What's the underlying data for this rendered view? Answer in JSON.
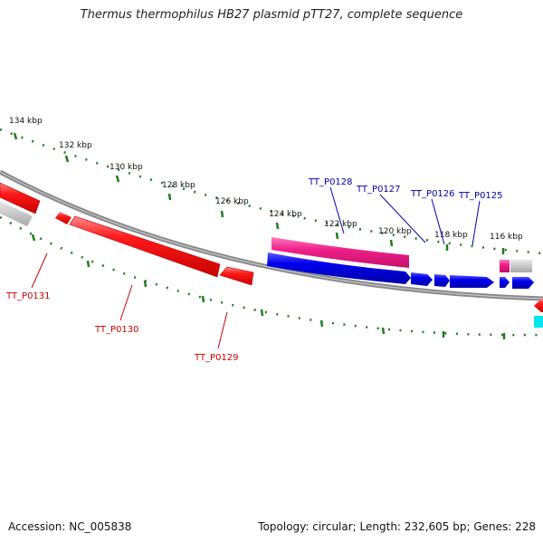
{
  "title": "Thermus thermophilus HB27 plasmid pTT27, complete sequence",
  "footer": {
    "accession": "Accession: NC_005838",
    "summary": "Topology: circular; Length: 232,605 bp; Genes: 228"
  },
  "scale_labels": [
    "134 kbp",
    "132 kbp",
    "130 kbp",
    "128 kbp",
    "126 kbp",
    "124 kbp",
    "122 kbp",
    "120 kbp",
    "118 kbp",
    "116 kbp"
  ],
  "gene_labels": [
    "TT_P0128",
    "TT_P0127",
    "TT_P0126",
    "TT_P0125",
    "TT_P0131",
    "TT_P0130",
    "TT_P0129"
  ],
  "colors": {
    "backbone": "#8a8a8a",
    "tick": "#1e7d1e",
    "forward_strand": "#0000dd",
    "reverse_strand": "#ee0000",
    "pink": "#ee2a8a",
    "grey_feature": "#bdbdbd",
    "cyan": "#00e5ee",
    "label_blue": "#0000aa",
    "label_red": "#cc0000"
  }
}
